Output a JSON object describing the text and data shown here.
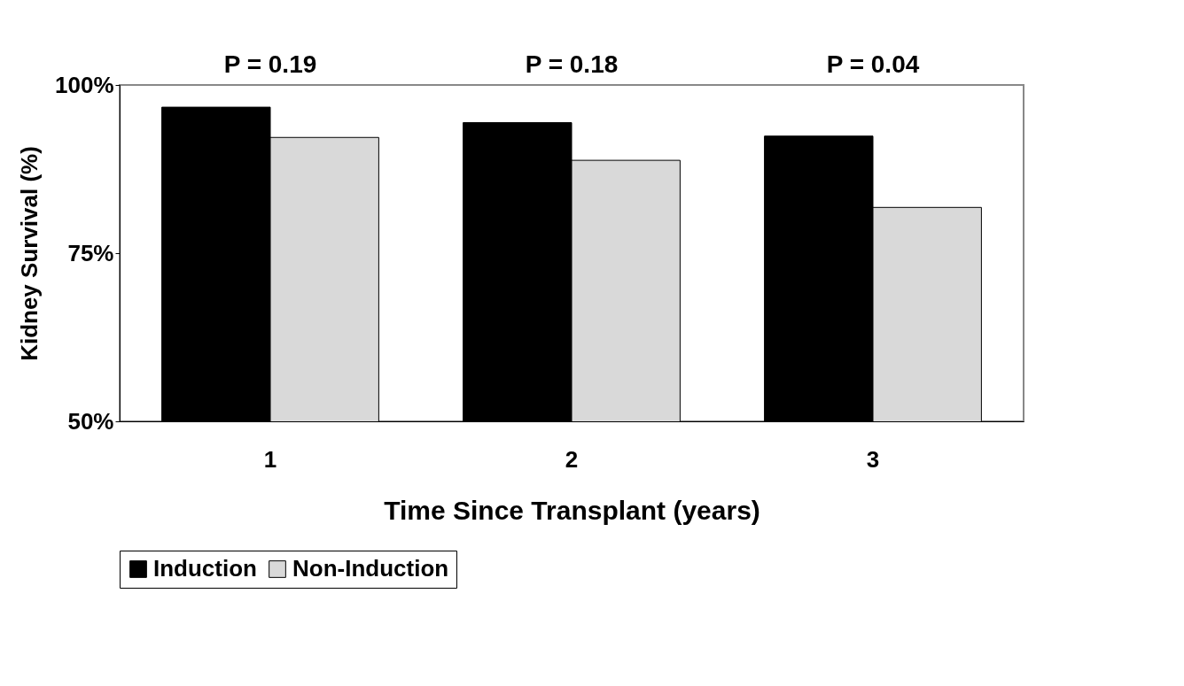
{
  "chart_data": {
    "type": "bar",
    "xlabel": "Time Since Transplant (years)",
    "ylabel": "Kidney Survival (%)",
    "categories": [
      "1",
      "2",
      "3"
    ],
    "series": [
      {
        "name": "Induction",
        "color": "#000000",
        "values": [
          96.7,
          94.4,
          92.4
        ]
      },
      {
        "name": "Non-Induction",
        "color": "#d9d9d9",
        "values": [
          92.2,
          88.8,
          81.8
        ]
      }
    ],
    "ylim": [
      50,
      100
    ],
    "yticks": [
      {
        "value": 50,
        "label": "50%"
      },
      {
        "value": 75,
        "label": "75%"
      },
      {
        "value": 100,
        "label": "100%"
      }
    ],
    "annotations": [
      "P = 0.19",
      "P = 0.18",
      "P = 0.04"
    ],
    "grid": false,
    "legend": "bottom"
  }
}
